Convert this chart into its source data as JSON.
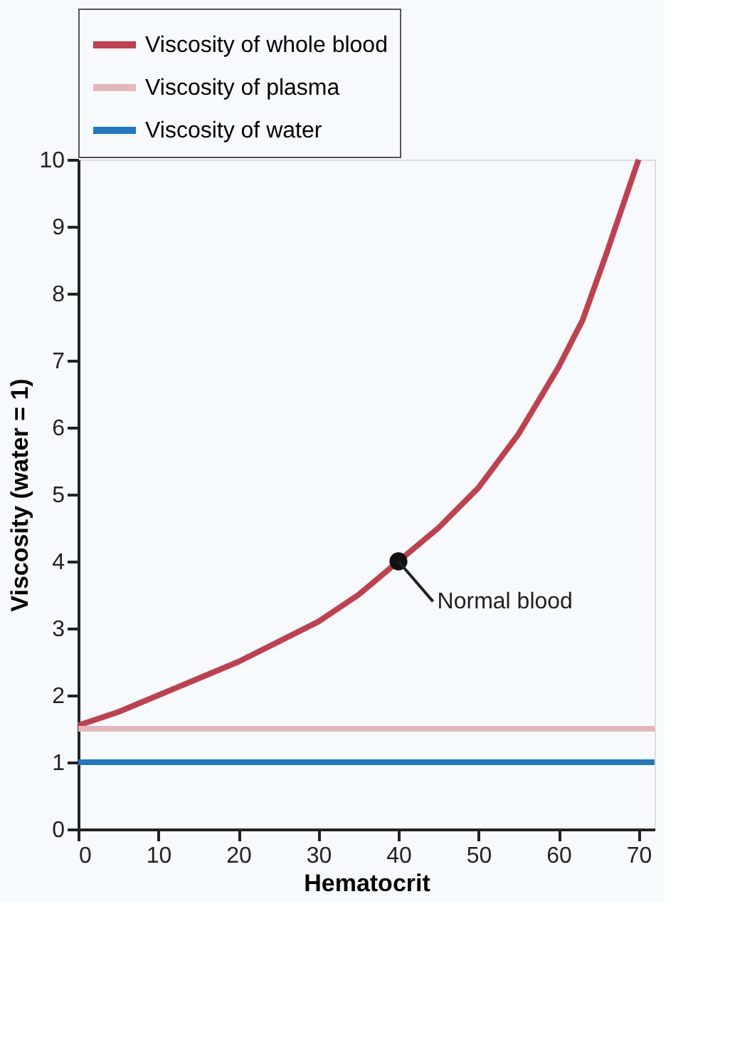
{
  "chart_data": {
    "type": "line",
    "xlabel": "Hematocrit",
    "ylabel": "Viscosity (water = 1)",
    "xlim": [
      0,
      72
    ],
    "xticks": [
      0,
      10,
      20,
      30,
      40,
      50,
      60,
      70
    ],
    "ylim": [
      0,
      10
    ],
    "yticks": [
      0,
      1,
      2,
      3,
      4,
      5,
      6,
      7,
      8,
      9,
      10
    ],
    "grid": false,
    "legend": "top",
    "line_style": "solid",
    "series": [
      {
        "name": "Viscosity of whole blood",
        "color": "#c0404f",
        "x": [
          0,
          5,
          10,
          15,
          20,
          25,
          30,
          35,
          40,
          45,
          50,
          55,
          60,
          63,
          66,
          68,
          70
        ],
        "values": [
          1.55,
          1.75,
          2.0,
          2.25,
          2.5,
          2.8,
          3.1,
          3.5,
          4.0,
          4.5,
          5.1,
          5.9,
          6.9,
          7.6,
          8.6,
          9.3,
          10.0
        ]
      },
      {
        "name": "Viscosity of plasma",
        "color": "#e3b8ba",
        "x": [
          0,
          72
        ],
        "values": [
          1.5,
          1.5
        ]
      },
      {
        "name": "Viscosity of water",
        "color": "#1f78c1",
        "x": [
          0,
          72
        ],
        "values": [
          1,
          1
        ]
      },
      {
        "type": "scatter",
        "marker": "circle",
        "color": "#111111",
        "x": [
          40
        ],
        "values": [
          4
        ]
      }
    ],
    "annotations": [
      {
        "text": "Normal blood",
        "x": 40,
        "y": 4
      }
    ]
  }
}
